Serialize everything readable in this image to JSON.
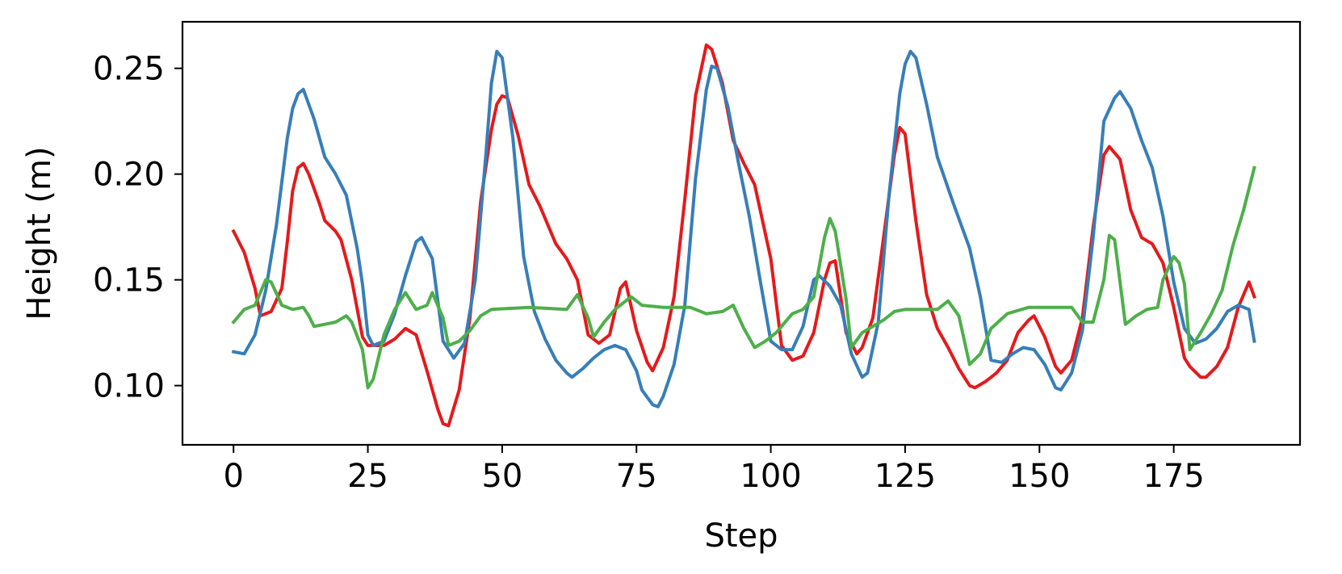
{
  "chart_data": {
    "type": "line",
    "title": "",
    "xlabel": "Step",
    "ylabel": "Height (m)",
    "xlim": [
      -9.5,
      198.5
    ],
    "ylim": [
      0.072,
      0.272
    ],
    "xticks": [
      0,
      25,
      50,
      75,
      100,
      125,
      150,
      175
    ],
    "xtick_labels": [
      "0",
      "25",
      "50",
      "75",
      "100",
      "125",
      "150",
      "175"
    ],
    "yticks": [
      0.1,
      0.15,
      0.2,
      0.25
    ],
    "ytick_labels": [
      "0.10",
      "0.15",
      "0.20",
      "0.25"
    ],
    "grid": false,
    "legend": "none",
    "series": [
      {
        "color": "#e41a1c",
        "points": [
          [
            0,
            0.173
          ],
          [
            2,
            0.163
          ],
          [
            4,
            0.146
          ],
          [
            5,
            0.133
          ],
          [
            7,
            0.135
          ],
          [
            9,
            0.146
          ],
          [
            10,
            0.168
          ],
          [
            11,
            0.192
          ],
          [
            12,
            0.203
          ],
          [
            13,
            0.205
          ],
          [
            14,
            0.2
          ],
          [
            16,
            0.186
          ],
          [
            17,
            0.178
          ],
          [
            19,
            0.173
          ],
          [
            20,
            0.169
          ],
          [
            22,
            0.15
          ],
          [
            24,
            0.123
          ],
          [
            25,
            0.119
          ],
          [
            28,
            0.119
          ],
          [
            30,
            0.122
          ],
          [
            32,
            0.127
          ],
          [
            34,
            0.124
          ],
          [
            36,
            0.107
          ],
          [
            38,
            0.089
          ],
          [
            39,
            0.082
          ],
          [
            40,
            0.081
          ],
          [
            42,
            0.098
          ],
          [
            44,
            0.132
          ],
          [
            46,
            0.187
          ],
          [
            48,
            0.221
          ],
          [
            49,
            0.233
          ],
          [
            50,
            0.237
          ],
          [
            51,
            0.236
          ],
          [
            53,
            0.218
          ],
          [
            55,
            0.195
          ],
          [
            57,
            0.185
          ],
          [
            60,
            0.167
          ],
          [
            62,
            0.16
          ],
          [
            64,
            0.15
          ],
          [
            66,
            0.124
          ],
          [
            68,
            0.12
          ],
          [
            70,
            0.124
          ],
          [
            72,
            0.146
          ],
          [
            73,
            0.149
          ],
          [
            75,
            0.126
          ],
          [
            77,
            0.111
          ],
          [
            78,
            0.107
          ],
          [
            80,
            0.118
          ],
          [
            82,
            0.142
          ],
          [
            84,
            0.188
          ],
          [
            86,
            0.237
          ],
          [
            88,
            0.261
          ],
          [
            89,
            0.259
          ],
          [
            91,
            0.243
          ],
          [
            93,
            0.216
          ],
          [
            95,
            0.205
          ],
          [
            97,
            0.195
          ],
          [
            100,
            0.16
          ],
          [
            102,
            0.119
          ],
          [
            104,
            0.112
          ],
          [
            106,
            0.114
          ],
          [
            108,
            0.125
          ],
          [
            110,
            0.15
          ],
          [
            111,
            0.158
          ],
          [
            112,
            0.159
          ],
          [
            114,
            0.125
          ],
          [
            116,
            0.115
          ],
          [
            117,
            0.118
          ],
          [
            119,
            0.132
          ],
          [
            121,
            0.17
          ],
          [
            123,
            0.209
          ],
          [
            124,
            0.222
          ],
          [
            125,
            0.219
          ],
          [
            127,
            0.178
          ],
          [
            129,
            0.143
          ],
          [
            131,
            0.127
          ],
          [
            133,
            0.118
          ],
          [
            135,
            0.108
          ],
          [
            137,
            0.1
          ],
          [
            138,
            0.099
          ],
          [
            140,
            0.102
          ],
          [
            142,
            0.106
          ],
          [
            144,
            0.112
          ],
          [
            146,
            0.125
          ],
          [
            148,
            0.131
          ],
          [
            149,
            0.133
          ],
          [
            151,
            0.123
          ],
          [
            153,
            0.109
          ],
          [
            154,
            0.106
          ],
          [
            156,
            0.112
          ],
          [
            158,
            0.132
          ],
          [
            160,
            0.175
          ],
          [
            162,
            0.209
          ],
          [
            163,
            0.213
          ],
          [
            165,
            0.207
          ],
          [
            167,
            0.183
          ],
          [
            169,
            0.17
          ],
          [
            171,
            0.167
          ],
          [
            173,
            0.158
          ],
          [
            175,
            0.137
          ],
          [
            177,
            0.113
          ],
          [
            178,
            0.109
          ],
          [
            180,
            0.104
          ],
          [
            181,
            0.104
          ],
          [
            183,
            0.109
          ],
          [
            185,
            0.118
          ],
          [
            187,
            0.137
          ],
          [
            189,
            0.149
          ],
          [
            190,
            0.142
          ]
        ]
      },
      {
        "color": "#377eb8",
        "points": [
          [
            0,
            0.116
          ],
          [
            2,
            0.115
          ],
          [
            4,
            0.124
          ],
          [
            6,
            0.145
          ],
          [
            8,
            0.176
          ],
          [
            10,
            0.217
          ],
          [
            11,
            0.231
          ],
          [
            12,
            0.238
          ],
          [
            13,
            0.24
          ],
          [
            15,
            0.226
          ],
          [
            17,
            0.208
          ],
          [
            19,
            0.2
          ],
          [
            21,
            0.19
          ],
          [
            23,
            0.165
          ],
          [
            24,
            0.148
          ],
          [
            25,
            0.124
          ],
          [
            26,
            0.119
          ],
          [
            28,
            0.121
          ],
          [
            30,
            0.134
          ],
          [
            32,
            0.152
          ],
          [
            34,
            0.168
          ],
          [
            35,
            0.17
          ],
          [
            37,
            0.16
          ],
          [
            39,
            0.121
          ],
          [
            41,
            0.113
          ],
          [
            43,
            0.12
          ],
          [
            45,
            0.15
          ],
          [
            47,
            0.21
          ],
          [
            48,
            0.243
          ],
          [
            49,
            0.258
          ],
          [
            50,
            0.255
          ],
          [
            52,
            0.217
          ],
          [
            54,
            0.161
          ],
          [
            56,
            0.135
          ],
          [
            58,
            0.122
          ],
          [
            60,
            0.112
          ],
          [
            62,
            0.106
          ],
          [
            63,
            0.104
          ],
          [
            65,
            0.108
          ],
          [
            67,
            0.113
          ],
          [
            69,
            0.117
          ],
          [
            71,
            0.119
          ],
          [
            73,
            0.117
          ],
          [
            75,
            0.107
          ],
          [
            76,
            0.098
          ],
          [
            78,
            0.091
          ],
          [
            79,
            0.09
          ],
          [
            80,
            0.095
          ],
          [
            82,
            0.11
          ],
          [
            84,
            0.138
          ],
          [
            86,
            0.198
          ],
          [
            88,
            0.24
          ],
          [
            89,
            0.251
          ],
          [
            90,
            0.25
          ],
          [
            92,
            0.232
          ],
          [
            94,
            0.205
          ],
          [
            96,
            0.18
          ],
          [
            98,
            0.15
          ],
          [
            100,
            0.121
          ],
          [
            102,
            0.117
          ],
          [
            104,
            0.117
          ],
          [
            106,
            0.128
          ],
          [
            108,
            0.15
          ],
          [
            109,
            0.152
          ],
          [
            111,
            0.147
          ],
          [
            113,
            0.138
          ],
          [
            115,
            0.115
          ],
          [
            117,
            0.104
          ],
          [
            118,
            0.106
          ],
          [
            120,
            0.13
          ],
          [
            122,
            0.19
          ],
          [
            124,
            0.238
          ],
          [
            125,
            0.252
          ],
          [
            126,
            0.258
          ],
          [
            127,
            0.255
          ],
          [
            129,
            0.233
          ],
          [
            131,
            0.208
          ],
          [
            134,
            0.186
          ],
          [
            137,
            0.165
          ],
          [
            139,
            0.142
          ],
          [
            141,
            0.112
          ],
          [
            143,
            0.111
          ],
          [
            145,
            0.115
          ],
          [
            147,
            0.118
          ],
          [
            149,
            0.117
          ],
          [
            151,
            0.11
          ],
          [
            153,
            0.099
          ],
          [
            154,
            0.098
          ],
          [
            156,
            0.106
          ],
          [
            158,
            0.126
          ],
          [
            160,
            0.17
          ],
          [
            162,
            0.225
          ],
          [
            164,
            0.236
          ],
          [
            165,
            0.239
          ],
          [
            167,
            0.231
          ],
          [
            169,
            0.216
          ],
          [
            171,
            0.203
          ],
          [
            173,
            0.18
          ],
          [
            175,
            0.149
          ],
          [
            177,
            0.127
          ],
          [
            179,
            0.12
          ],
          [
            181,
            0.122
          ],
          [
            183,
            0.127
          ],
          [
            185,
            0.135
          ],
          [
            187,
            0.138
          ],
          [
            189,
            0.136
          ],
          [
            190,
            0.121
          ]
        ]
      },
      {
        "color": "#4daf4a",
        "points": [
          [
            0,
            0.13
          ],
          [
            2,
            0.136
          ],
          [
            4,
            0.138
          ],
          [
            6,
            0.15
          ],
          [
            7,
            0.149
          ],
          [
            9,
            0.138
          ],
          [
            11,
            0.136
          ],
          [
            13,
            0.137
          ],
          [
            14,
            0.133
          ],
          [
            15,
            0.128
          ],
          [
            17,
            0.129
          ],
          [
            19,
            0.13
          ],
          [
            21,
            0.133
          ],
          [
            22,
            0.13
          ],
          [
            24,
            0.117
          ],
          [
            25,
            0.099
          ],
          [
            26,
            0.103
          ],
          [
            28,
            0.124
          ],
          [
            30,
            0.136
          ],
          [
            32,
            0.144
          ],
          [
            34,
            0.136
          ],
          [
            36,
            0.138
          ],
          [
            37,
            0.144
          ],
          [
            39,
            0.132
          ],
          [
            40,
            0.119
          ],
          [
            42,
            0.121
          ],
          [
            44,
            0.126
          ],
          [
            46,
            0.133
          ],
          [
            48,
            0.136
          ],
          [
            55,
            0.137
          ],
          [
            62,
            0.136
          ],
          [
            64,
            0.143
          ],
          [
            66,
            0.132
          ],
          [
            67,
            0.123
          ],
          [
            69,
            0.13
          ],
          [
            71,
            0.136
          ],
          [
            73,
            0.14
          ],
          [
            74,
            0.142
          ],
          [
            76,
            0.138
          ],
          [
            80,
            0.137
          ],
          [
            82,
            0.137
          ],
          [
            85,
            0.137
          ],
          [
            88,
            0.134
          ],
          [
            91,
            0.135
          ],
          [
            93,
            0.138
          ],
          [
            95,
            0.127
          ],
          [
            97,
            0.118
          ],
          [
            99,
            0.121
          ],
          [
            101,
            0.125
          ],
          [
            104,
            0.134
          ],
          [
            106,
            0.136
          ],
          [
            108,
            0.142
          ],
          [
            110,
            0.17
          ],
          [
            111,
            0.179
          ],
          [
            112,
            0.173
          ],
          [
            114,
            0.141
          ],
          [
            115,
            0.118
          ],
          [
            117,
            0.125
          ],
          [
            119,
            0.128
          ],
          [
            121,
            0.131
          ],
          [
            123,
            0.135
          ],
          [
            125,
            0.136
          ],
          [
            131,
            0.136
          ],
          [
            133,
            0.14
          ],
          [
            135,
            0.133
          ],
          [
            137,
            0.11
          ],
          [
            139,
            0.115
          ],
          [
            141,
            0.127
          ],
          [
            144,
            0.134
          ],
          [
            148,
            0.137
          ],
          [
            156,
            0.137
          ],
          [
            158,
            0.13
          ],
          [
            160,
            0.13
          ],
          [
            162,
            0.15
          ],
          [
            163,
            0.171
          ],
          [
            164,
            0.169
          ],
          [
            166,
            0.129
          ],
          [
            168,
            0.133
          ],
          [
            170,
            0.136
          ],
          [
            172,
            0.137
          ],
          [
            173,
            0.15
          ],
          [
            175,
            0.161
          ],
          [
            176,
            0.158
          ],
          [
            177,
            0.148
          ],
          [
            178,
            0.117
          ],
          [
            180,
            0.125
          ],
          [
            182,
            0.134
          ],
          [
            184,
            0.145
          ],
          [
            186,
            0.166
          ],
          [
            188,
            0.183
          ],
          [
            190,
            0.203
          ]
        ]
      }
    ]
  }
}
